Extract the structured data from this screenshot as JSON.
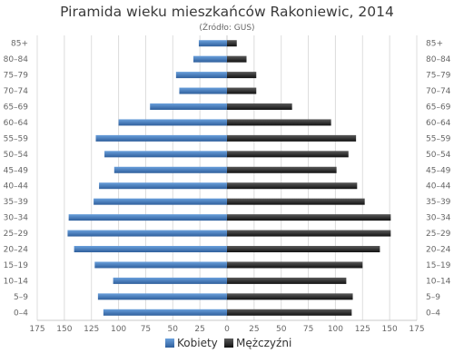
{
  "chart_data": {
    "type": "bar",
    "orientation": "horizontal",
    "title": "Piramida wieku mieszkańców Rakoniewic, 2014",
    "subtitle": "(Źródło: GUS)",
    "categories": [
      "85+",
      "80–84",
      "75–79",
      "70–74",
      "65–69",
      "60–64",
      "55–59",
      "50–54",
      "45–49",
      "40–44",
      "35–39",
      "30–34",
      "25–29",
      "20–24",
      "15–19",
      "10–14",
      "5–9",
      "0–4"
    ],
    "series": [
      {
        "name": "Kobiety",
        "color": "#3a6fb0",
        "side": "left",
        "values": [
          26,
          31,
          47,
          44,
          71,
          100,
          121,
          113,
          104,
          118,
          123,
          146,
          147,
          141,
          122,
          105,
          119,
          114
        ]
      },
      {
        "name": "Mężczyźni",
        "color": "#2b2b2b",
        "side": "right",
        "values": [
          9,
          18,
          27,
          27,
          60,
          96,
          119,
          112,
          101,
          120,
          127,
          151,
          151,
          141,
          125,
          110,
          116,
          115
        ]
      }
    ],
    "xlim": [
      -175,
      175
    ],
    "x_ticks": [
      -175,
      -150,
      -125,
      -100,
      -75,
      -50,
      -25,
      0,
      25,
      50,
      75,
      100,
      125,
      150,
      175
    ],
    "x_tick_labels": [
      "175",
      "150",
      "125",
      "100",
      "75",
      "50",
      "25",
      "0",
      "25",
      "50",
      "75",
      "100",
      "125",
      "150",
      "175"
    ],
    "grid": "x-vertical",
    "legend_position": "bottom-center",
    "category_labels_both_sides": true
  }
}
